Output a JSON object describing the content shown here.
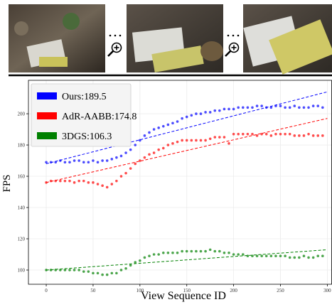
{
  "chart_data": {
    "type": "scatter",
    "x_label": "View Sequence ID",
    "y_label": "FPS",
    "x": [
      0,
      5,
      10,
      15,
      20,
      25,
      30,
      35,
      40,
      45,
      50,
      55,
      60,
      65,
      70,
      75,
      80,
      85,
      90,
      95,
      100,
      105,
      110,
      115,
      120,
      125,
      130,
      135,
      140,
      145,
      150,
      155,
      160,
      165,
      170,
      175,
      180,
      185,
      190,
      195,
      200,
      205,
      210,
      215,
      220,
      225,
      230,
      235,
      240,
      245,
      250,
      255,
      260,
      265,
      270,
      275,
      280,
      285,
      290,
      295
    ],
    "series": [
      {
        "name": "Ours:189.5",
        "color": "#0000ff",
        "values": [
          169,
          169,
          169,
          170,
          169,
          169,
          170,
          170,
          169,
          169,
          170,
          169,
          170,
          170,
          171,
          172,
          173,
          175,
          177,
          180,
          183,
          186,
          188,
          190,
          191,
          192,
          193,
          194,
          195,
          197,
          198,
          199,
          200,
          200,
          201,
          201,
          202,
          202,
          203,
          203,
          203,
          204,
          204,
          204,
          204,
          205,
          205,
          204,
          204,
          205,
          205,
          204,
          204,
          205,
          204,
          204,
          204,
          205,
          205,
          204
        ],
        "trend_x": [
          0,
          300
        ],
        "trend": [
          168,
          214
        ]
      },
      {
        "name": "AdR-AABB:174.8",
        "color": "#ff0000",
        "values": [
          156,
          157,
          157,
          157,
          157,
          157,
          156,
          157,
          157,
          156,
          156,
          155,
          154,
          153,
          155,
          157,
          160,
          162,
          165,
          168,
          170,
          172,
          174,
          175,
          177,
          178,
          180,
          181,
          182,
          183,
          183,
          183,
          183,
          183,
          183,
          184,
          185,
          185,
          185,
          181,
          187,
          187,
          187,
          187,
          187,
          186,
          187,
          187,
          186,
          187,
          187,
          187,
          187,
          186,
          186,
          186,
          187,
          186,
          186,
          186
        ],
        "trend_x": [
          0,
          300
        ],
        "trend": [
          156,
          197
        ]
      },
      {
        "name": "3DGS:106.3",
        "color": "#008000",
        "values": [
          100,
          100,
          100,
          100,
          100,
          100,
          100,
          100,
          99,
          99,
          98,
          98,
          97,
          97,
          98,
          98,
          100,
          101,
          103,
          105,
          106,
          108,
          109,
          110,
          110,
          111,
          111,
          111,
          111,
          112,
          112,
          112,
          112,
          112,
          112,
          113,
          112,
          112,
          111,
          111,
          110,
          110,
          110,
          109,
          109,
          109,
          109,
          109,
          109,
          109,
          109,
          109,
          108,
          108,
          108,
          109,
          108,
          108,
          109,
          109
        ],
        "trend_x": [
          0,
          300
        ],
        "trend": [
          100,
          113
        ]
      }
    ],
    "xlim": [
      -19,
      305
    ],
    "ylim": [
      90.9,
      221.4
    ],
    "xticks": [
      0,
      50,
      100,
      150,
      200,
      250,
      300
    ],
    "yticks": [
      100,
      120,
      140,
      160,
      180,
      200
    ],
    "grid": true,
    "legend": "upper left"
  }
}
